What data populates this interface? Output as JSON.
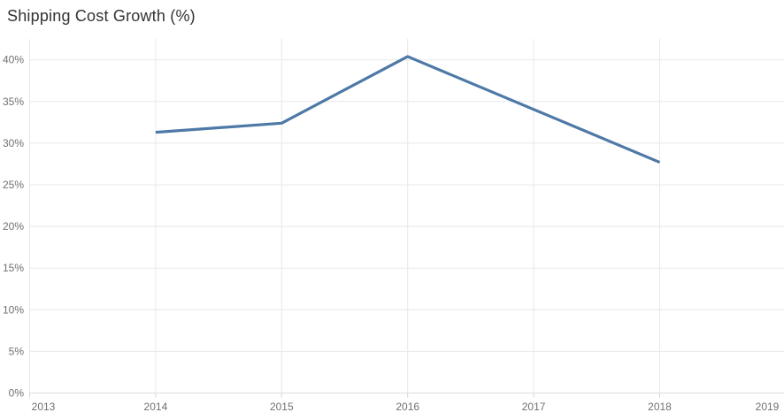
{
  "title": "Shipping Cost Growth (%)",
  "chart_data": {
    "type": "line",
    "title": "Shipping Cost Growth (%)",
    "x": [
      2014,
      2015,
      2016,
      2018
    ],
    "values": [
      31.3,
      32.4,
      40.4,
      27.7
    ],
    "series_name": "Shipping Cost Growth",
    "xlabel": "",
    "ylabel": "",
    "x_ticks": [
      {
        "year": 2013,
        "label": "2013"
      },
      {
        "year": 2014,
        "label": "2014"
      },
      {
        "year": 2015,
        "label": "2015"
      },
      {
        "year": 2016,
        "label": "2016"
      },
      {
        "year": 2017,
        "label": "2017"
      },
      {
        "year": 2018,
        "label": "2018"
      },
      {
        "year": 2019,
        "label": "2019"
      }
    ],
    "y_ticks": [
      {
        "value": 0,
        "label": "0%"
      },
      {
        "value": 5,
        "label": "5%"
      },
      {
        "value": 10,
        "label": "10%"
      },
      {
        "value": 15,
        "label": "15%"
      },
      {
        "value": 20,
        "label": "20%"
      },
      {
        "value": 25,
        "label": "25%"
      },
      {
        "value": 30,
        "label": "30%"
      },
      {
        "value": 35,
        "label": "35%"
      },
      {
        "value": 40,
        "label": "40%"
      }
    ],
    "xlim": [
      2013,
      2019
    ],
    "ylim": [
      0,
      42.5
    ],
    "grid": true,
    "legend": false,
    "line_color": "#4e79a7",
    "gridline_color": "#e8e8e8",
    "axis_line_color": "#dddddd",
    "tick_mark_color": "#d4d4d4",
    "tick_label_color": "#707070",
    "title_color": "#333333",
    "background_color": "#ffffff"
  }
}
